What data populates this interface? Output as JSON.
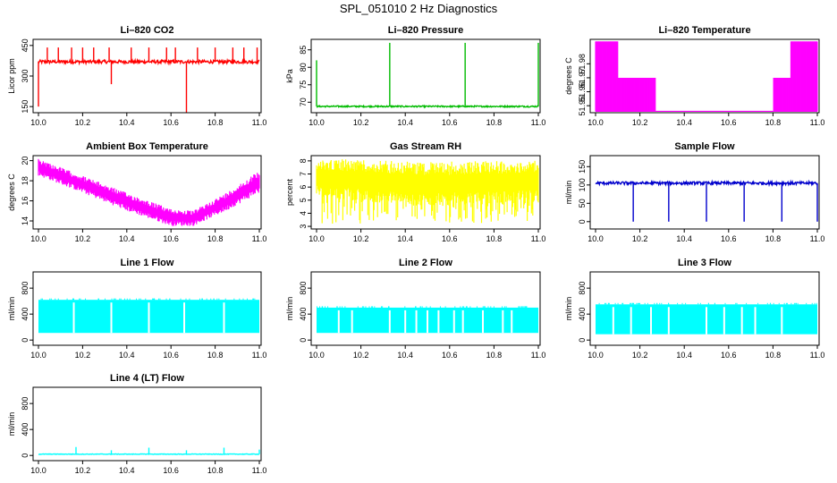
{
  "figure_title": "SPL_051010  2 Hz Diagnostics",
  "chart_data": [
    {
      "id": "co2",
      "type": "line",
      "title": "Li–820 CO2",
      "ylabel": "Licor ppm",
      "color": "#ff0000",
      "xlim": [
        10.0,
        11.0
      ],
      "ylim": [
        120,
        480
      ],
      "xticks": [
        10.0,
        10.2,
        10.4,
        10.6,
        10.8,
        11.0
      ],
      "xtick_labels": [
        "10.0",
        "10.2",
        "10.4",
        "10.6",
        "10.8",
        "11.0"
      ],
      "yticks": [
        150,
        300,
        450
      ],
      "ytick_labels": [
        "150",
        "300",
        "450"
      ],
      "series": [
        {
          "pattern": "noisy",
          "base": [
            [
              10.0,
              370
            ],
            [
              11.0,
              370
            ]
          ],
          "noise": 8,
          "spikes": [
            [
              10.0,
              150
            ],
            [
              10.04,
              440
            ],
            [
              10.09,
              440
            ],
            [
              10.15,
              440
            ],
            [
              10.2,
              440
            ],
            [
              10.25,
              440
            ],
            [
              10.32,
              440
            ],
            [
              10.33,
              260
            ],
            [
              10.42,
              440
            ],
            [
              10.5,
              440
            ],
            [
              10.58,
              440
            ],
            [
              10.62,
              440
            ],
            [
              10.67,
              120
            ],
            [
              10.72,
              440
            ],
            [
              10.8,
              440
            ],
            [
              10.88,
              440
            ],
            [
              10.93,
              440
            ],
            [
              10.99,
              440
            ]
          ]
        }
      ]
    },
    {
      "id": "pressure",
      "type": "line",
      "title": "Li–820 Pressure",
      "ylabel": "kPa",
      "color": "#00bb00",
      "xlim": [
        10.0,
        11.0
      ],
      "ylim": [
        67,
        88
      ],
      "xticks": [
        10.0,
        10.2,
        10.4,
        10.6,
        10.8,
        11.0
      ],
      "xtick_labels": [
        "10.0",
        "10.2",
        "10.4",
        "10.6",
        "10.8",
        "11.0"
      ],
      "yticks": [
        70,
        75,
        80,
        85
      ],
      "ytick_labels": [
        "70",
        "75",
        "80",
        "85"
      ],
      "series": [
        {
          "pattern": "noisy",
          "base": [
            [
              10.0,
              68.8
            ],
            [
              11.0,
              68.8
            ]
          ],
          "noise": 0.2,
          "spikes": [
            [
              10.0,
              82
            ],
            [
              10.33,
              87
            ],
            [
              10.67,
              87
            ],
            [
              11.0,
              87
            ]
          ]
        }
      ]
    },
    {
      "id": "temperature",
      "type": "line",
      "title": "Li–820 Temperature",
      "ylabel": "degrees C",
      "color": "#ff00ff",
      "xlim": [
        10.0,
        11.0
      ],
      "ylim": [
        51.945,
        51.9975
      ],
      "xticks": [
        10.0,
        10.2,
        10.4,
        10.6,
        10.8,
        11.0
      ],
      "xtick_labels": [
        "10.0",
        "10.2",
        "10.4",
        "10.6",
        "10.8",
        "11.0"
      ],
      "yticks": [
        51.95,
        51.96,
        51.97,
        51.98
      ],
      "ytick_labels": [
        "51.95",
        "51.96",
        "51.97",
        "51.98"
      ],
      "series": [
        {
          "pattern": "digital",
          "low": 51.946,
          "segments": [
            [
              10.0,
              10.1,
              51.996
            ],
            [
              10.1,
              10.27,
              51.97
            ],
            [
              10.27,
              10.8,
              null
            ],
            [
              10.8,
              10.88,
              51.97
            ],
            [
              10.88,
              11.0,
              51.996
            ]
          ]
        }
      ]
    },
    {
      "id": "ambient",
      "type": "area",
      "title": "Ambient Box Temperature",
      "ylabel": "degrees C",
      "color": "#ff00ff",
      "xlim": [
        10.0,
        11.0
      ],
      "ylim": [
        13.2,
        20.5
      ],
      "xticks": [
        10.0,
        10.2,
        10.4,
        10.6,
        10.8,
        11.0
      ],
      "xtick_labels": [
        "10.0",
        "10.2",
        "10.4",
        "10.6",
        "10.8",
        "11.0"
      ],
      "yticks": [
        14,
        16,
        18,
        20
      ],
      "ytick_labels": [
        "14",
        "16",
        "18",
        "20"
      ],
      "series": [
        {
          "pattern": "band",
          "upper": [
            [
              10.0,
              20.2
            ],
            [
              10.2,
              18.5
            ],
            [
              10.4,
              16.8
            ],
            [
              10.6,
              15.2
            ],
            [
              10.7,
              15.0
            ],
            [
              10.85,
              16.8
            ],
            [
              11.0,
              19.0
            ]
          ],
          "lower": [
            [
              10.0,
              18.5
            ],
            [
              10.2,
              16.8
            ],
            [
              10.4,
              15.0
            ],
            [
              10.6,
              13.5
            ],
            [
              10.7,
              13.5
            ],
            [
              10.85,
              15.0
            ],
            [
              11.0,
              16.8
            ]
          ]
        }
      ]
    },
    {
      "id": "rh",
      "type": "area",
      "title": "Gas Stream RH",
      "ylabel": "percent",
      "color": "#ffff00",
      "xlim": [
        10.0,
        11.0
      ],
      "ylim": [
        2.8,
        8.4
      ],
      "xticks": [
        10.0,
        10.2,
        10.4,
        10.6,
        10.8,
        11.0
      ],
      "xtick_labels": [
        "10.0",
        "10.2",
        "10.4",
        "10.6",
        "10.8",
        "11.0"
      ],
      "yticks": [
        3,
        4,
        5,
        6,
        7,
        8
      ],
      "ytick_labels": [
        "3",
        "4",
        "5",
        "6",
        "7",
        "8"
      ],
      "series": [
        {
          "pattern": "band",
          "upper": [
            [
              10.0,
              8.2
            ],
            [
              10.5,
              7.9
            ],
            [
              11.0,
              8.1
            ]
          ],
          "lower": [
            [
              10.0,
              5.2
            ],
            [
              10.5,
              4.5
            ],
            [
              11.0,
              4.8
            ]
          ],
          "dips": 3.2
        }
      ]
    },
    {
      "id": "sample",
      "type": "line",
      "title": "Sample Flow",
      "ylabel": "ml/min",
      "color": "#0000cc",
      "xlim": [
        10.0,
        11.0
      ],
      "ylim": [
        -20,
        180
      ],
      "xticks": [
        10.0,
        10.2,
        10.4,
        10.6,
        10.8,
        11.0
      ],
      "xtick_labels": [
        "10.0",
        "10.2",
        "10.4",
        "10.6",
        "10.8",
        "11.0"
      ],
      "yticks": [
        0,
        50,
        100,
        150
      ],
      "ytick_labels": [
        "0",
        "50",
        "100",
        "150"
      ],
      "series": [
        {
          "pattern": "noisy",
          "base": [
            [
              10.0,
              105
            ],
            [
              11.0,
              105
            ]
          ],
          "noise": 4,
          "spikes": [
            [
              10.17,
              0
            ],
            [
              10.33,
              0
            ],
            [
              10.5,
              0
            ],
            [
              10.67,
              0
            ],
            [
              10.84,
              0
            ],
            [
              11.0,
              0
            ]
          ]
        }
      ]
    },
    {
      "id": "line1",
      "type": "area",
      "title": "Line 1 Flow",
      "ylabel": "ml/min",
      "color": "#00ffff",
      "xlim": [
        10.0,
        11.0
      ],
      "ylim": [
        -80,
        1050
      ],
      "xticks": [
        10.0,
        10.2,
        10.4,
        10.6,
        10.8,
        11.0
      ],
      "xtick_labels": [
        "10.0",
        "10.2",
        "10.4",
        "10.6",
        "10.8",
        "11.0"
      ],
      "yticks": [
        0,
        400,
        800
      ],
      "ytick_labels": [
        "0",
        "400",
        "800"
      ],
      "series": [
        {
          "pattern": "block",
          "top": 620,
          "bottom": 110,
          "gaps": [
            10.16,
            10.33,
            10.5,
            10.66,
            10.84
          ]
        }
      ]
    },
    {
      "id": "line2",
      "type": "area",
      "title": "Line 2 Flow",
      "ylabel": "ml/min",
      "color": "#00ffff",
      "xlim": [
        10.0,
        11.0
      ],
      "ylim": [
        -80,
        1050
      ],
      "xticks": [
        10.0,
        10.2,
        10.4,
        10.6,
        10.8,
        11.0
      ],
      "xtick_labels": [
        "10.0",
        "10.2",
        "10.4",
        "10.6",
        "10.8",
        "11.0"
      ],
      "yticks": [
        0,
        400,
        800
      ],
      "ytick_labels": [
        "0",
        "400",
        "800"
      ],
      "series": [
        {
          "pattern": "block",
          "top": 500,
          "bottom": 110,
          "gaps": [
            10.1,
            10.16,
            10.33,
            10.4,
            10.45,
            10.5,
            10.55,
            10.62,
            10.66,
            10.75,
            10.84,
            10.88
          ]
        }
      ]
    },
    {
      "id": "line3",
      "type": "area",
      "title": "Line 3 Flow",
      "ylabel": "ml/min",
      "color": "#00ffff",
      "xlim": [
        10.0,
        11.0
      ],
      "ylim": [
        -80,
        1050
      ],
      "xticks": [
        10.0,
        10.2,
        10.4,
        10.6,
        10.8,
        11.0
      ],
      "xtick_labels": [
        "10.0",
        "10.2",
        "10.4",
        "10.6",
        "10.8",
        "11.0"
      ],
      "yticks": [
        0,
        400,
        800
      ],
      "ytick_labels": [
        "0",
        "400",
        "800"
      ],
      "series": [
        {
          "pattern": "block",
          "top": 550,
          "bottom": 90,
          "gaps": [
            10.08,
            10.16,
            10.25,
            10.33,
            10.5,
            10.58,
            10.66,
            10.72,
            10.84
          ]
        }
      ]
    },
    {
      "id": "line4",
      "type": "line",
      "title": "Line 4 (LT) Flow",
      "ylabel": "ml/min",
      "color": "#00ffff",
      "xlim": [
        10.0,
        11.0
      ],
      "ylim": [
        -80,
        1050
      ],
      "xticks": [
        10.0,
        10.2,
        10.4,
        10.6,
        10.8,
        11.0
      ],
      "xtick_labels": [
        "10.0",
        "10.2",
        "10.4",
        "10.6",
        "10.8",
        "11.0"
      ],
      "yticks": [
        0,
        400,
        800
      ],
      "ytick_labels": [
        "0",
        "400",
        "800"
      ],
      "series": [
        {
          "pattern": "noisy",
          "base": [
            [
              10.0,
              20
            ],
            [
              11.0,
              20
            ]
          ],
          "noise": 4,
          "spikes": [
            [
              10.17,
              130
            ],
            [
              10.33,
              80
            ],
            [
              10.5,
              120
            ],
            [
              10.67,
              80
            ],
            [
              10.84,
              120
            ],
            [
              11.0,
              90
            ]
          ]
        }
      ]
    }
  ]
}
